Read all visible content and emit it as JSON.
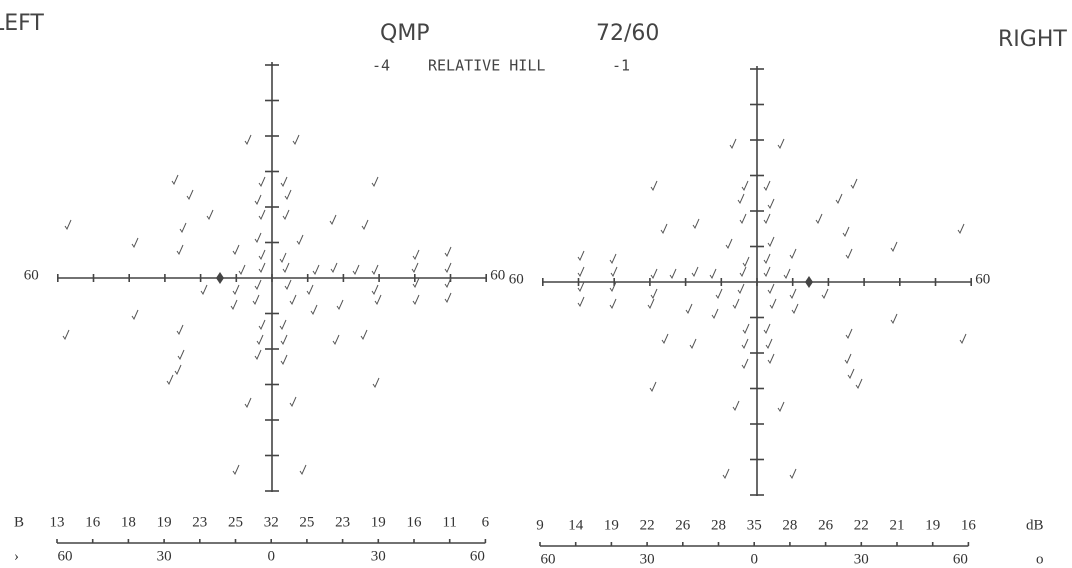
{
  "header": {
    "left": "LEFT",
    "test": "QMP",
    "stimulus": "72/60",
    "right": "RIGHT",
    "left_value": "-4",
    "mode": "RELATIVE HILL",
    "right_value": "-1"
  },
  "left_field": {
    "axis_left": "60",
    "axis_right": "60",
    "db_unit": "B",
    "db_values": [
      13,
      16,
      18,
      19,
      23,
      25,
      32,
      25,
      23,
      19,
      16,
      11,
      6
    ],
    "degree_unit": "›",
    "degree_labels": [
      "60",
      "30",
      "0",
      "30",
      "60"
    ]
  },
  "right_field": {
    "axis_left": "60",
    "axis_right": "60",
    "db_unit": "dB",
    "db_values": [
      9,
      14,
      19,
      22,
      26,
      28,
      35,
      28,
      26,
      22,
      21,
      19,
      16
    ],
    "degree_unit": "o",
    "degree_labels": [
      "60",
      "30",
      "0",
      "30",
      "60"
    ]
  }
}
